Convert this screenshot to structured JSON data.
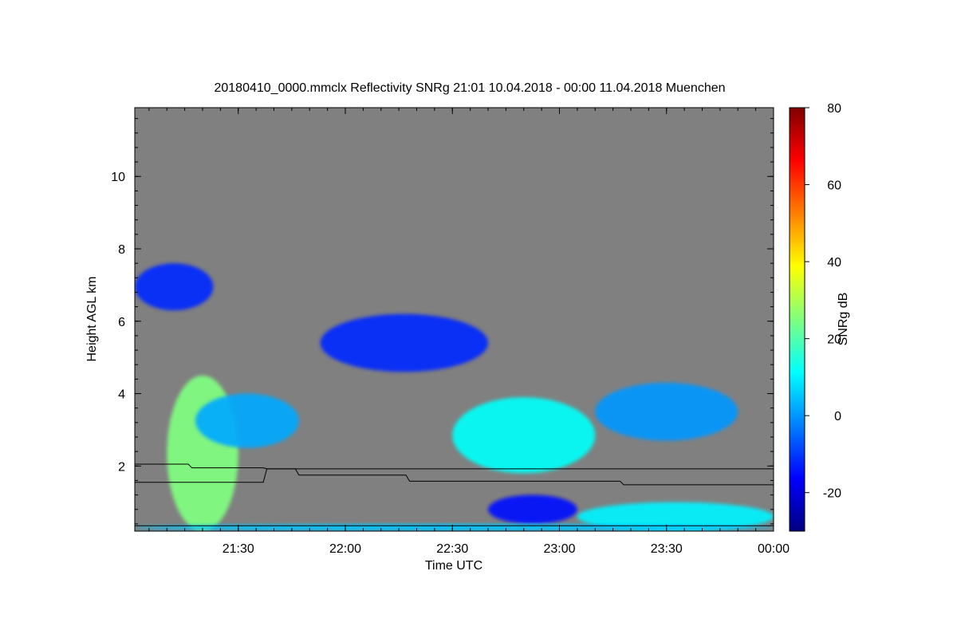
{
  "chart_data": {
    "type": "heatmap",
    "title": "20180410_0000.mmclx Reflectivity SNRg   21:01 10.04.2018 - 00:00 11.04.2018 Muenchen",
    "xlabel": "Time UTC",
    "ylabel": "Height AGL km",
    "xlim": [
      "21:01",
      "00:00"
    ],
    "ylim": [
      0.2,
      11.9
    ],
    "x_ticks": [
      "21:30",
      "22:00",
      "22:30",
      "23:00",
      "23:30",
      "00:00"
    ],
    "y_ticks": [
      "2",
      "4",
      "6",
      "8",
      "10"
    ],
    "colorbar": {
      "label": "SNRg dB",
      "range": [
        -30,
        80
      ],
      "ticks": [
        "-20",
        "0",
        "20",
        "40",
        "60",
        "80"
      ],
      "colormap": "jet"
    },
    "background_color": "#808080",
    "echo_features": [
      {
        "time_start": "21:01",
        "time_end": "21:23",
        "height_low": 6.3,
        "height_high": 7.6,
        "snr_db": -12
      },
      {
        "time_start": "21:10",
        "time_end": "21:30",
        "height_low": 0.2,
        "height_high": 4.5,
        "snr_db": 25
      },
      {
        "time_start": "21:18",
        "time_end": "21:47",
        "height_low": 2.5,
        "height_high": 4.0,
        "snr_db": 2
      },
      {
        "time_start": "21:53",
        "time_end": "22:40",
        "height_low": 4.6,
        "height_high": 6.2,
        "snr_db": -12
      },
      {
        "time_start": "22:30",
        "time_end": "23:10",
        "height_low": 1.8,
        "height_high": 3.9,
        "snr_db": 12
      },
      {
        "time_start": "23:10",
        "time_end": "23:50",
        "height_low": 2.7,
        "height_high": 4.3,
        "snr_db": 0
      },
      {
        "time_start": "22:40",
        "time_end": "23:05",
        "height_low": 0.4,
        "height_high": 1.2,
        "snr_db": -15
      },
      {
        "time_start": "23:05",
        "time_end": "00:00",
        "height_low": 0.2,
        "height_high": 1.0,
        "snr_db": 10
      },
      {
        "time_start": "21:01",
        "time_end": "00:00",
        "height_low": 0.2,
        "height_high": 0.4,
        "snr_db": 5
      }
    ],
    "line_upper": {
      "times": [
        "21:01",
        "21:16",
        "21:17",
        "21:37",
        "21:38",
        "21:46",
        "21:47",
        "22:17",
        "22:18",
        "23:17",
        "23:18",
        "00:00"
      ],
      "heights": [
        2.05,
        2.05,
        1.95,
        1.95,
        1.92,
        1.92,
        1.75,
        1.75,
        1.58,
        1.58,
        1.48,
        1.48
      ]
    },
    "line_lower": {
      "times": [
        "21:01",
        "21:37",
        "21:38",
        "00:00"
      ],
      "heights": [
        1.55,
        1.55,
        1.92,
        1.92
      ]
    },
    "line_ground": {
      "times": [
        "21:01",
        "00:00"
      ],
      "heights": [
        0.35,
        0.35
      ]
    }
  }
}
